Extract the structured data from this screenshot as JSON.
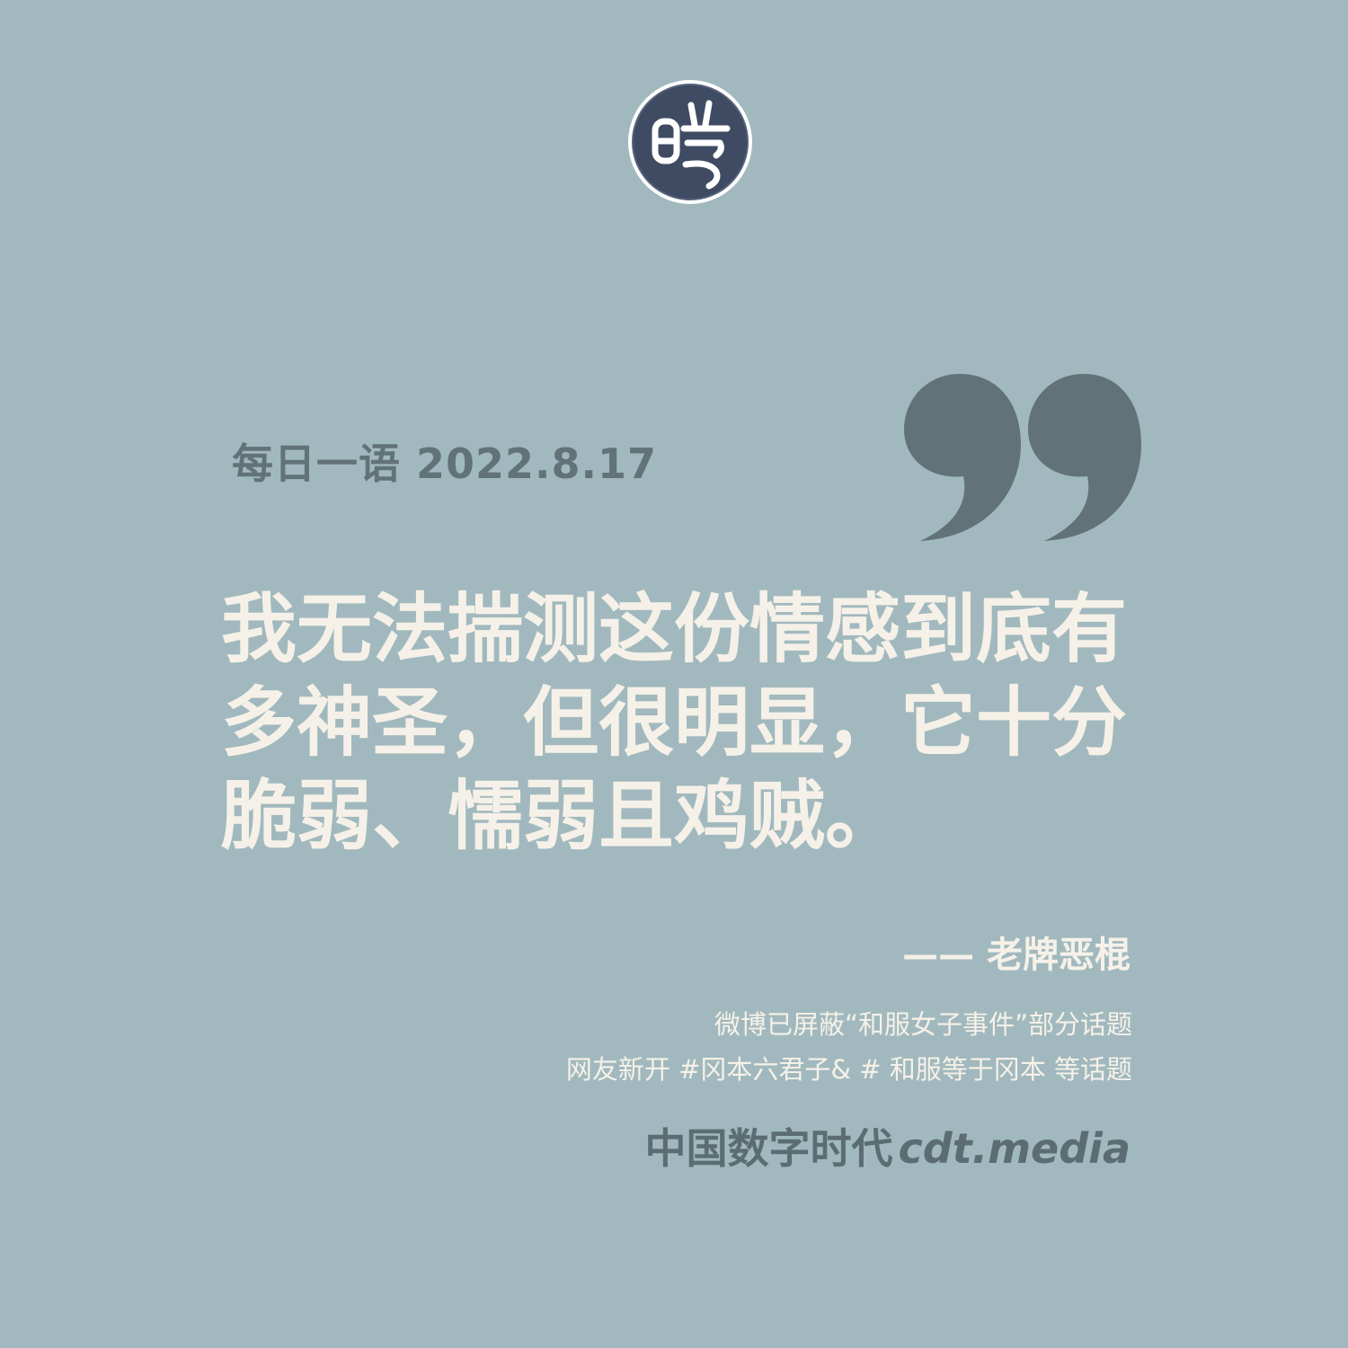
{
  "header": {
    "date_line": "每日一语 2022.8.17"
  },
  "quote": {
    "lines": [
      "我无法揣测这份情感到底有",
      "多神圣，但很明显，它十分",
      "脆弱、懦弱且鸡贼。"
    ],
    "attribution": "—— 老牌恶棍"
  },
  "note": {
    "lines": [
      "微博已屏蔽“和服女子事件”部分话题",
      "网友新开 #冈本六君子& # 和服等于冈本 等话题"
    ]
  },
  "brand": {
    "name_cn": "中国数字时代",
    "domain": "cdt.media",
    "logo_glyph": "时"
  },
  "colors": {
    "background": "#a1b9be",
    "quote_text": "#f6f1e8",
    "accent_dark": "#627378",
    "logo_fill": "#3f4a63"
  },
  "icons": {
    "logo": "cdt-seal-logo-icon",
    "quote": "closing-quote-icon"
  }
}
